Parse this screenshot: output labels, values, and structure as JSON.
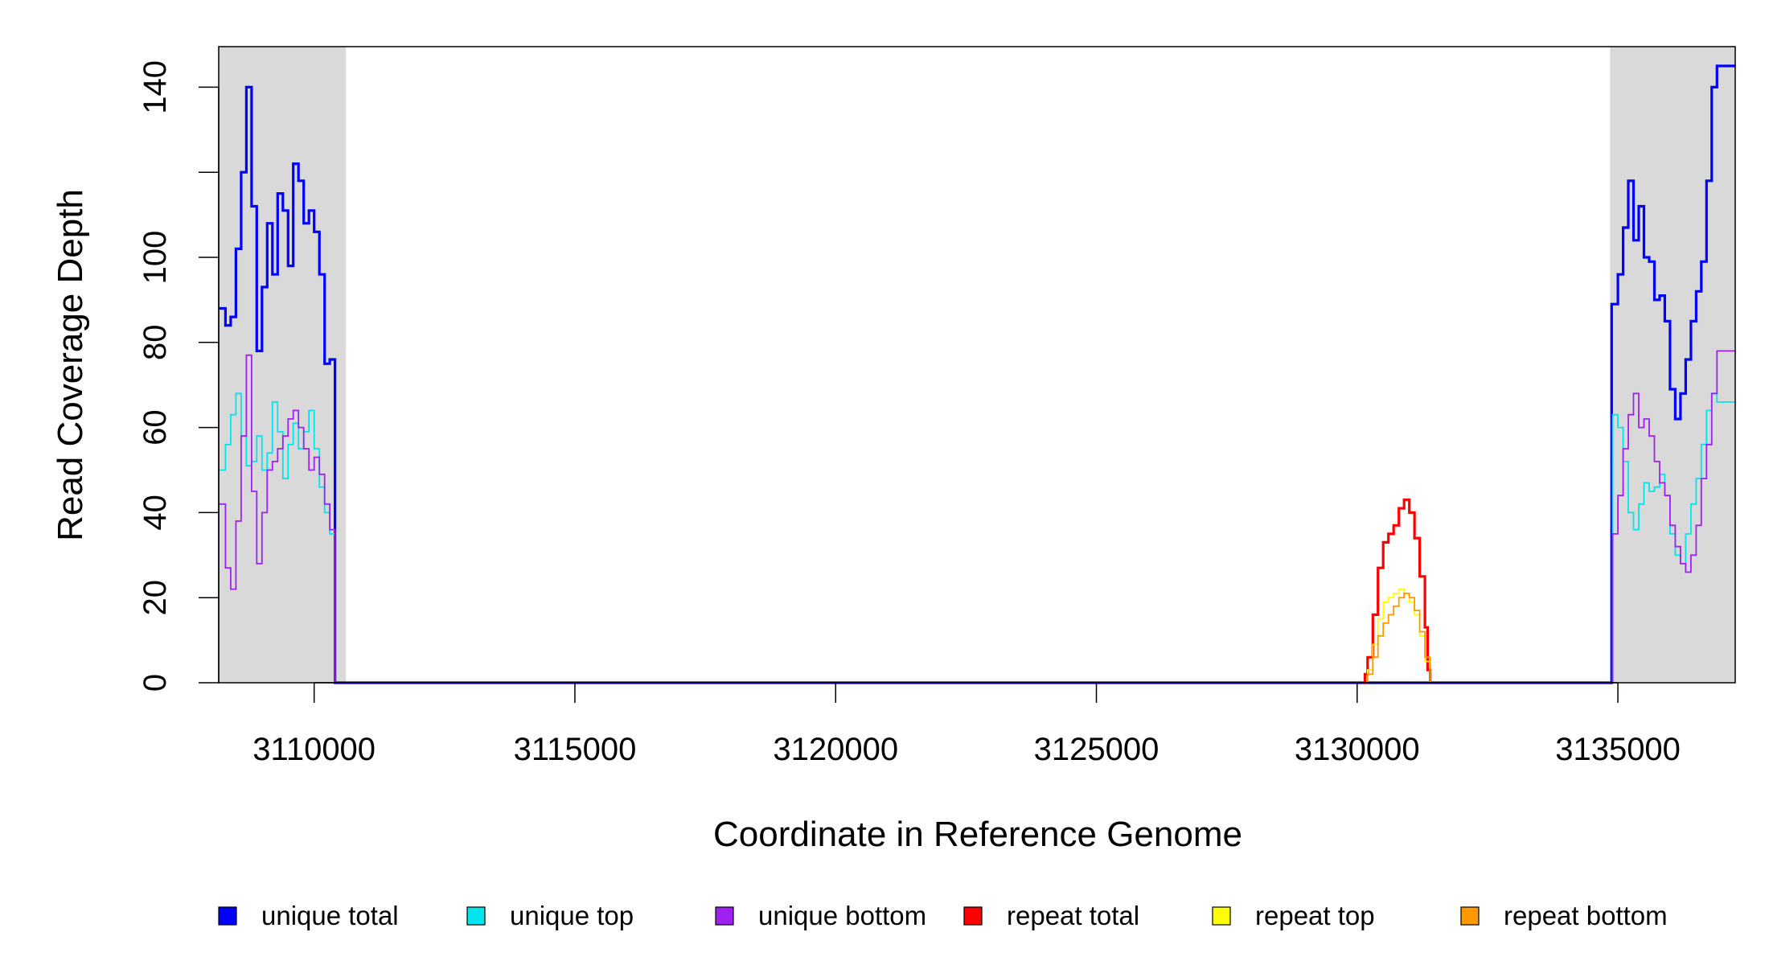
{
  "chart_data": {
    "type": "line",
    "title": "",
    "xlabel": "Coordinate in Reference Genome",
    "ylabel": "Read Coverage Depth",
    "xlim": [
      3108170,
      3137250
    ],
    "ylim": [
      0,
      149
    ],
    "x_ticks": [
      3110000,
      3115000,
      3120000,
      3125000,
      3130000,
      3135000
    ],
    "x_tick_labels": [
      "3110000",
      "3115000",
      "3120000",
      "3125000",
      "3130000",
      "3135000"
    ],
    "y_ticks": [
      0,
      20,
      40,
      60,
      80,
      100,
      120,
      140
    ],
    "y_tick_labels": [
      "0",
      "20",
      "40",
      "60",
      "80",
      "100",
      "",
      "140"
    ],
    "shaded_regions": [
      {
        "x0": 3108170,
        "x1": 3110610,
        "color": "#d9d9d9"
      },
      {
        "x0": 3134850,
        "x1": 3137250,
        "color": "#d9d9d9"
      }
    ],
    "grid": false,
    "legend_placement": "bottom",
    "series": [
      {
        "name": "unique total",
        "color": "#0000ff",
        "x": [
          3108170,
          3108300,
          3108400,
          3108500,
          3108600,
          3108700,
          3108800,
          3108900,
          3109000,
          3109100,
          3109200,
          3109300,
          3109400,
          3109500,
          3109600,
          3109700,
          3109800,
          3109900,
          3110000,
          3110100,
          3110200,
          3110300,
          3110400,
          3110500,
          3110600,
          3110620,
          3134840,
          3134880,
          3135000,
          3135100,
          3135200,
          3135300,
          3135400,
          3135500,
          3135600,
          3135700,
          3135800,
          3135900,
          3136000,
          3136100,
          3136200,
          3136300,
          3136400,
          3136500,
          3136600,
          3136700,
          3136800,
          3136900,
          3137000,
          3137100,
          3137250
        ],
        "values": [
          88,
          84,
          86,
          102,
          120,
          140,
          112,
          78,
          93,
          108,
          96,
          115,
          111,
          98,
          122,
          118,
          108,
          111,
          106,
          96,
          75,
          76,
          0,
          0,
          0,
          0,
          0,
          89,
          96,
          107,
          118,
          104,
          112,
          100,
          99,
          90,
          91,
          85,
          69,
          62,
          68,
          76,
          85,
          92,
          99,
          118,
          140,
          145,
          145,
          145,
          145
        ]
      },
      {
        "name": "unique top",
        "color": "#00e5ee",
        "x": [
          3108170,
          3108300,
          3108400,
          3108500,
          3108600,
          3108700,
          3108800,
          3108900,
          3109000,
          3109100,
          3109200,
          3109300,
          3109400,
          3109500,
          3109600,
          3109700,
          3109800,
          3109900,
          3110000,
          3110100,
          3110200,
          3110300,
          3110400,
          3110500,
          3110600,
          3134840,
          3134900,
          3135000,
          3135100,
          3135200,
          3135300,
          3135400,
          3135500,
          3135600,
          3135700,
          3135800,
          3135900,
          3136000,
          3136100,
          3136200,
          3136300,
          3136400,
          3136500,
          3136600,
          3136700,
          3136800,
          3136900,
          3137000,
          3137100,
          3137250
        ],
        "values": [
          50,
          56,
          63,
          68,
          58,
          51,
          52,
          58,
          50,
          54,
          66,
          59,
          48,
          56,
          61,
          55,
          59,
          64,
          55,
          46,
          40,
          35,
          0,
          0,
          0,
          0,
          63,
          60,
          52,
          40,
          36,
          42,
          47,
          45,
          46,
          49,
          44,
          35,
          30,
          28,
          35,
          42,
          48,
          56,
          64,
          68,
          66,
          66,
          66,
          66
        ]
      },
      {
        "name": "unique bottom",
        "color": "#a020f0",
        "x": [
          3108170,
          3108300,
          3108400,
          3108500,
          3108600,
          3108700,
          3108800,
          3108900,
          3109000,
          3109100,
          3109200,
          3109300,
          3109400,
          3109500,
          3109600,
          3109700,
          3109800,
          3109900,
          3110000,
          3110100,
          3110200,
          3110300,
          3110400,
          3110500,
          3110600,
          3134840,
          3134900,
          3135000,
          3135100,
          3135200,
          3135300,
          3135400,
          3135500,
          3135600,
          3135700,
          3135800,
          3135900,
          3136000,
          3136100,
          3136200,
          3136300,
          3136400,
          3136500,
          3136600,
          3136700,
          3136800,
          3136900,
          3137000,
          3137100,
          3137250
        ],
        "values": [
          42,
          27,
          22,
          38,
          58,
          77,
          45,
          28,
          40,
          50,
          52,
          55,
          58,
          62,
          64,
          60,
          55,
          50,
          53,
          49,
          42,
          36,
          0,
          0,
          0,
          0,
          35,
          44,
          55,
          63,
          68,
          60,
          62,
          58,
          52,
          47,
          44,
          37,
          32,
          28,
          26,
          30,
          37,
          48,
          56,
          68,
          78,
          78,
          78,
          78
        ]
      },
      {
        "name": "repeat total",
        "color": "#ff0000",
        "x": [
          3130120,
          3130150,
          3130200,
          3130300,
          3130400,
          3130500,
          3130600,
          3130700,
          3130800,
          3130900,
          3131000,
          3131100,
          3131200,
          3131300,
          3131350,
          3131400
        ],
        "values": [
          0,
          2,
          6,
          16,
          27,
          33,
          35,
          37,
          41,
          43,
          40,
          34,
          25,
          13,
          3,
          0
        ]
      },
      {
        "name": "repeat top",
        "color": "#ffff00",
        "x": [
          3130120,
          3130200,
          3130300,
          3130400,
          3130500,
          3130600,
          3130700,
          3130800,
          3130900,
          3131000,
          3131100,
          3131200,
          3131300,
          3131400
        ],
        "values": [
          0,
          3,
          9,
          15,
          19,
          20,
          21,
          22,
          21,
          19,
          16,
          11,
          5,
          0
        ]
      },
      {
        "name": "repeat bottom",
        "color": "#ff9900",
        "x": [
          3130120,
          3130200,
          3130300,
          3130400,
          3130500,
          3130600,
          3130700,
          3130800,
          3130900,
          3131000,
          3131100,
          3131200,
          3131300,
          3131400
        ],
        "values": [
          0,
          2,
          6,
          11,
          14,
          16,
          18,
          20,
          21,
          20,
          17,
          12,
          6,
          0
        ]
      }
    ]
  }
}
